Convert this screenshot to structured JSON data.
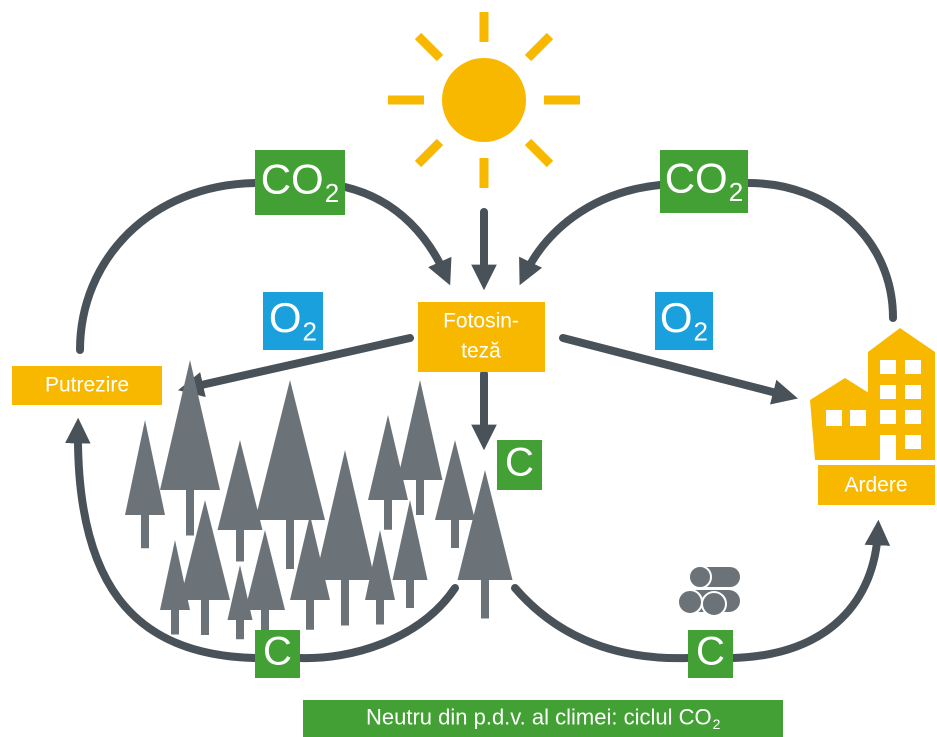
{
  "photosynthesis": {
    "lines": [
      "Fotosin-",
      "teză"
    ]
  },
  "decay": "Putrezire",
  "combustion": "Ardere",
  "flows": [
    {
      "main": "CO",
      "sub": "2"
    },
    {
      "main": "CO",
      "sub": "2"
    },
    {
      "main": "O",
      "sub": "2"
    },
    {
      "main": "O",
      "sub": "2"
    },
    {
      "main": "C"
    },
    {
      "main": "C"
    },
    {
      "main": "C"
    }
  ],
  "footer": {
    "main": "Neutru din p.d.v. al climei: ciclul CO",
    "sub": "2"
  }
}
